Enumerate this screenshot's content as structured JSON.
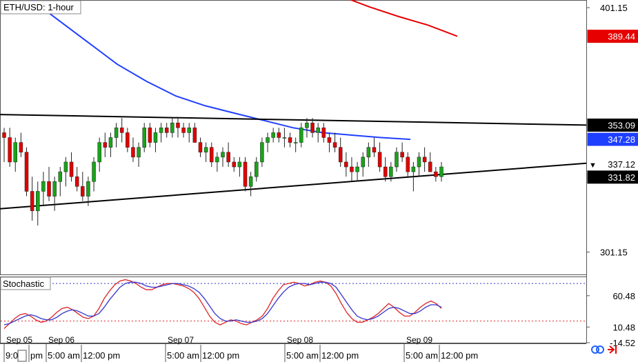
{
  "symbol_label": "ETH/USD: 1-hour",
  "indicator_label": "Stochastic",
  "footer_icons": [
    "link-icon",
    "arrow-right-bar-icon"
  ],
  "chart_data": [
    {
      "type": "candlestick",
      "title": "ETH/USD: 1-hour",
      "ylim": [
        292,
        404
      ],
      "y_ticks": [
        401.15,
        301.15
      ],
      "price_tags": [
        {
          "label": "389.44",
          "value": 389.44,
          "color": "#e60000",
          "text_color": "#ffffff"
        },
        {
          "label": "353.09",
          "value": 353.09,
          "color": "#000000",
          "text_color": "#ffffff"
        },
        {
          "label": "347.28",
          "value": 347.28,
          "color": "#1f3fff",
          "text_color": "#ffffff"
        },
        {
          "label": "337.12",
          "value": 337.12,
          "color": "#ffffff",
          "text_color": "#000000",
          "marker": "▼"
        },
        {
          "label": "331.82",
          "value": 331.82,
          "color": "#000000",
          "text_color": "#ffffff"
        }
      ],
      "candle_colors": {
        "up": "#1aa31a",
        "down": "#e00000"
      },
      "candles": [
        [
          350,
          352,
          338,
          348
        ],
        [
          348,
          352,
          336,
          338
        ],
        [
          338,
          348,
          334,
          346
        ],
        [
          346,
          350,
          340,
          342
        ],
        [
          342,
          344,
          324,
          326
        ],
        [
          326,
          332,
          314,
          318
        ],
        [
          318,
          330,
          312,
          326
        ],
        [
          326,
          334,
          320,
          330
        ],
        [
          330,
          336,
          322,
          324
        ],
        [
          324,
          332,
          318,
          330
        ],
        [
          330,
          336,
          324,
          334
        ],
        [
          334,
          340,
          328,
          338
        ],
        [
          338,
          342,
          330,
          332
        ],
        [
          332,
          336,
          326,
          328
        ],
        [
          328,
          334,
          322,
          324
        ],
        [
          324,
          332,
          320,
          330
        ],
        [
          330,
          340,
          326,
          338
        ],
        [
          338,
          348,
          334,
          346
        ],
        [
          346,
          350,
          340,
          344
        ],
        [
          344,
          350,
          340,
          348
        ],
        [
          348,
          354,
          344,
          352
        ],
        [
          352,
          356,
          346,
          350
        ],
        [
          350,
          352,
          342,
          344
        ],
        [
          344,
          348,
          338,
          340
        ],
        [
          340,
          346,
          336,
          344
        ],
        [
          344,
          354,
          342,
          352
        ],
        [
          352,
          354,
          344,
          346
        ],
        [
          346,
          352,
          342,
          350
        ],
        [
          350,
          354,
          346,
          352
        ],
        [
          352,
          354,
          348,
          350
        ],
        [
          350,
          356,
          348,
          354
        ],
        [
          354,
          356,
          348,
          352
        ],
        [
          352,
          354,
          348,
          350
        ],
        [
          350,
          354,
          346,
          352
        ],
        [
          352,
          354,
          346,
          346
        ],
        [
          346,
          348,
          340,
          342
        ],
        [
          342,
          346,
          338,
          344
        ],
        [
          344,
          346,
          336,
          338
        ],
        [
          338,
          342,
          334,
          340
        ],
        [
          340,
          344,
          336,
          342
        ],
        [
          342,
          346,
          336,
          338
        ],
        [
          338,
          340,
          334,
          336
        ],
        [
          336,
          340,
          332,
          338
        ],
        [
          338,
          340,
          326,
          328
        ],
        [
          328,
          334,
          324,
          332
        ],
        [
          332,
          340,
          330,
          338
        ],
        [
          338,
          348,
          336,
          346
        ],
        [
          346,
          350,
          342,
          348
        ],
        [
          348,
          352,
          346,
          350
        ],
        [
          350,
          352,
          346,
          348
        ],
        [
          348,
          352,
          344,
          348
        ],
        [
          348,
          350,
          344,
          346
        ],
        [
          346,
          348,
          342,
          346
        ],
        [
          346,
          354,
          344,
          352
        ],
        [
          352,
          356,
          348,
          354
        ],
        [
          354,
          356,
          348,
          350
        ],
        [
          350,
          354,
          346,
          352
        ],
        [
          352,
          354,
          346,
          348
        ],
        [
          348,
          350,
          342,
          346
        ],
        [
          346,
          350,
          342,
          344
        ],
        [
          344,
          348,
          336,
          338
        ],
        [
          338,
          342,
          332,
          336
        ],
        [
          336,
          340,
          330,
          334
        ],
        [
          334,
          338,
          330,
          336
        ],
        [
          336,
          342,
          332,
          340
        ],
        [
          340,
          346,
          336,
          344
        ],
        [
          344,
          348,
          340,
          342
        ],
        [
          342,
          346,
          334,
          336
        ],
        [
          336,
          340,
          330,
          332
        ],
        [
          332,
          338,
          330,
          336
        ],
        [
          336,
          344,
          334,
          342
        ],
        [
          342,
          346,
          338,
          340
        ],
        [
          340,
          342,
          332,
          334
        ],
        [
          334,
          338,
          326,
          336
        ],
        [
          336,
          342,
          332,
          340
        ],
        [
          340,
          344,
          334,
          338
        ],
        [
          338,
          342,
          334,
          334
        ],
        [
          334,
          336,
          330,
          332
        ],
        [
          332,
          338,
          330,
          336
        ]
      ],
      "moving_averages": [
        {
          "color": "#e60000",
          "points": [
            [
              53,
              410
            ],
            [
              58,
              406
            ],
            [
              63,
              401.5
            ],
            [
              68,
              397.5
            ],
            [
              73,
              394
            ],
            [
              78,
              389.44
            ]
          ]
        },
        {
          "color": "#1f3fff",
          "points": [
            [
              0,
              420
            ],
            [
              5,
              405
            ],
            [
              10,
              396
            ],
            [
              15,
              387
            ],
            [
              20,
              378
            ],
            [
              25,
              371
            ],
            [
              30,
              365
            ],
            [
              35,
              361
            ],
            [
              40,
              358
            ],
            [
              45,
              355
            ],
            [
              50,
              352
            ],
            [
              55,
              350
            ],
            [
              60,
              349
            ],
            [
              65,
              348
            ],
            [
              70,
              347.28
            ]
          ]
        },
        {
          "color": "#000000",
          "points": [
            [
              -2,
              357.5
            ],
            [
              100,
              353.1
            ]
          ]
        },
        {
          "color": "#000000",
          "points": [
            [
              -2,
              318.5
            ],
            [
              100,
              337.5
            ]
          ]
        }
      ]
    },
    {
      "type": "line",
      "title": "Stochastic",
      "ylim": [
        -14.52,
        90
      ],
      "y_ticks": [
        60.48,
        10.48,
        -14.52
      ],
      "levels": [
        {
          "value": 80,
          "color": "#3333cc"
        },
        {
          "value": 20,
          "color": "#dd2222"
        }
      ],
      "series": [
        {
          "color": "#dd2222",
          "values": [
            8,
            16,
            24,
            30,
            32,
            28,
            22,
            18,
            20,
            26,
            34,
            40,
            42,
            38,
            32,
            26,
            24,
            28,
            40,
            56,
            68,
            78,
            84,
            86,
            84,
            80,
            74,
            70,
            70,
            74,
            78,
            80,
            80,
            78,
            76,
            72,
            66,
            56,
            42,
            28,
            18,
            14,
            18,
            22,
            20,
            16,
            14,
            18,
            22,
            28,
            40,
            56,
            68,
            78,
            80,
            82,
            80,
            76,
            78,
            82,
            84,
            82,
            76,
            64,
            48,
            34,
            24,
            18,
            18,
            22,
            26,
            32,
            40,
            48,
            42,
            34,
            28,
            28,
            34,
            42,
            48,
            52,
            48,
            40
          ]
        },
        {
          "color": "#3333cc",
          "values": [
            14,
            16,
            20,
            24,
            28,
            30,
            28,
            24,
            22,
            22,
            26,
            32,
            36,
            38,
            36,
            32,
            28,
            28,
            32,
            42,
            54,
            64,
            74,
            80,
            82,
            82,
            80,
            76,
            74,
            74,
            76,
            78,
            80,
            80,
            78,
            76,
            72,
            66,
            56,
            44,
            32,
            24,
            20,
            20,
            22,
            20,
            18,
            18,
            20,
            24,
            32,
            44,
            56,
            66,
            74,
            78,
            80,
            80,
            78,
            80,
            82,
            82,
            80,
            74,
            62,
            50,
            38,
            28,
            24,
            22,
            24,
            28,
            34,
            40,
            42,
            40,
            36,
            32,
            32,
            36,
            42,
            46,
            46,
            42
          ]
        }
      ]
    }
  ],
  "x_axis": {
    "date_labels": [
      "Sep 05",
      "Sep 06",
      "Sep 07",
      "Sep 08",
      "Sep 09"
    ],
    "time_labels": [
      "9:0",
      "pm",
      "5:00 am",
      "12:00 pm",
      "5:00 am",
      "12:00 pm",
      "5:00 am",
      "12:00 pm",
      "5:00 am",
      "12:00 pm"
    ]
  }
}
